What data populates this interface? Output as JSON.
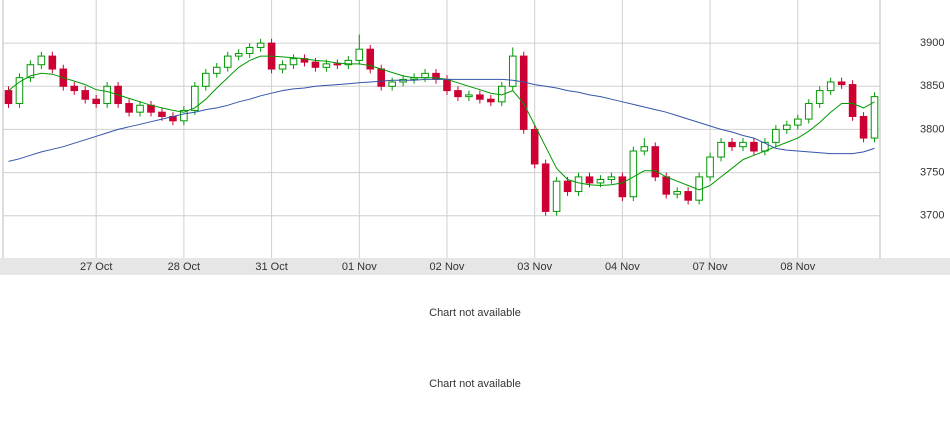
{
  "chart_data": {
    "type": "candlestick",
    "categories": [
      null,
      null,
      null,
      null,
      null,
      null,
      null,
      null,
      "27 Oct",
      null,
      null,
      null,
      null,
      null,
      null,
      null,
      "28 Oct",
      null,
      null,
      null,
      null,
      null,
      null,
      null,
      "31 Oct",
      null,
      null,
      null,
      null,
      null,
      null,
      null,
      "01 Nov",
      null,
      null,
      null,
      null,
      null,
      null,
      null,
      "02 Nov",
      null,
      null,
      null,
      null,
      null,
      null,
      null,
      "03 Nov",
      null,
      null,
      null,
      null,
      null,
      null,
      null,
      "04 Nov",
      null,
      null,
      null,
      null,
      null,
      null,
      null,
      "07 Nov",
      null,
      null,
      null,
      null,
      null,
      null,
      null,
      "08 Nov",
      null,
      null,
      null,
      null,
      null,
      null,
      null
    ],
    "open": [
      3845,
      3830,
      3860,
      3875,
      3885,
      3870,
      3850,
      3845,
      3835,
      3830,
      3850,
      3830,
      3820,
      3828,
      3820,
      3815,
      3810,
      3822,
      3850,
      3865,
      3872,
      3885,
      3888,
      3895,
      3900,
      3870,
      3875,
      3882,
      3878,
      3872,
      3876,
      3875,
      3880,
      3893,
      3870,
      3850,
      3855,
      3858,
      3860,
      3865,
      3858,
      3845,
      3838,
      3840,
      3835,
      3832,
      3850,
      3885,
      3800,
      3760,
      3705,
      3740,
      3728,
      3745,
      3738,
      3742,
      3745,
      3722,
      3775,
      3780,
      3745,
      3725,
      3728,
      3718,
      3745,
      3768,
      3785,
      3780,
      3785,
      3775,
      3785,
      3800,
      3805,
      3812,
      3830,
      3845,
      3855,
      3852,
      3815,
      3790
    ],
    "high": [
      3850,
      3865,
      3880,
      3890,
      3890,
      3875,
      3855,
      3850,
      3840,
      3855,
      3855,
      3835,
      3833,
      3833,
      3825,
      3820,
      3827,
      3855,
      3870,
      3877,
      3890,
      3893,
      3900,
      3905,
      3905,
      3880,
      3887,
      3887,
      3883,
      3881,
      3881,
      3885,
      3910,
      3898,
      3875,
      3860,
      3863,
      3865,
      3870,
      3870,
      3863,
      3850,
      3845,
      3845,
      3840,
      3855,
      3895,
      3890,
      3805,
      3765,
      3745,
      3745,
      3750,
      3750,
      3747,
      3750,
      3750,
      3780,
      3790,
      3785,
      3750,
      3733,
      3733,
      3750,
      3773,
      3790,
      3790,
      3790,
      3790,
      3790,
      3805,
      3810,
      3817,
      3835,
      3850,
      3860,
      3860,
      3857,
      3820,
      3843
    ],
    "low": [
      3825,
      3825,
      3855,
      3870,
      3865,
      3845,
      3840,
      3830,
      3825,
      3825,
      3825,
      3815,
      3815,
      3815,
      3810,
      3805,
      3805,
      3817,
      3845,
      3860,
      3867,
      3880,
      3883,
      3890,
      3865,
      3865,
      3870,
      3873,
      3867,
      3867,
      3870,
      3870,
      3875,
      3865,
      3845,
      3845,
      3850,
      3853,
      3855,
      3853,
      3840,
      3833,
      3833,
      3830,
      3827,
      3827,
      3845,
      3795,
      3755,
      3700,
      3700,
      3723,
      3723,
      3733,
      3733,
      3737,
      3717,
      3717,
      3770,
      3740,
      3720,
      3720,
      3713,
      3713,
      3740,
      3763,
      3775,
      3775,
      3770,
      3770,
      3780,
      3795,
      3800,
      3807,
      3825,
      3840,
      3847,
      3810,
      3785,
      3785
    ],
    "close": [
      3830,
      3860,
      3875,
      3885,
      3870,
      3850,
      3845,
      3835,
      3830,
      3850,
      3830,
      3820,
      3828,
      3820,
      3815,
      3810,
      3822,
      3850,
      3865,
      3872,
      3885,
      3888,
      3895,
      3900,
      3870,
      3875,
      3882,
      3878,
      3872,
      3876,
      3875,
      3880,
      3893,
      3870,
      3850,
      3855,
      3858,
      3860,
      3865,
      3858,
      3845,
      3838,
      3840,
      3835,
      3832,
      3850,
      3885,
      3800,
      3760,
      3705,
      3740,
      3728,
      3745,
      3738,
      3742,
      3745,
      3722,
      3775,
      3780,
      3745,
      3725,
      3728,
      3718,
      3745,
      3768,
      3785,
      3780,
      3785,
      3775,
      3785,
      3800,
      3805,
      3812,
      3830,
      3845,
      3855,
      3852,
      3815,
      3790,
      3838
    ],
    "up_color": "#009900",
    "down_color": "#cc0033",
    "lines": [
      {
        "color": "#009900",
        "values": [
          3845,
          3855,
          3862,
          3865,
          3864,
          3860,
          3856,
          3852,
          3846,
          3844,
          3840,
          3836,
          3832,
          3828,
          3825,
          3822,
          3820,
          3825,
          3835,
          3848,
          3860,
          3872,
          3880,
          3885,
          3885,
          3884,
          3883,
          3882,
          3880,
          3879,
          3877,
          3876,
          3876,
          3874,
          3870,
          3866,
          3862,
          3860,
          3860,
          3860,
          3858,
          3854,
          3850,
          3846,
          3842,
          3840,
          3845,
          3830,
          3805,
          3780,
          3755,
          3742,
          3738,
          3736,
          3735,
          3736,
          3738,
          3745,
          3752,
          3752,
          3745,
          3740,
          3735,
          3730,
          3735,
          3745,
          3755,
          3765,
          3770,
          3775,
          3780,
          3785,
          3790,
          3798,
          3808,
          3820,
          3830,
          3830,
          3825,
          3832
        ]
      },
      {
        "color": "#3355aa",
        "values": [
          3763,
          3766,
          3770,
          3774,
          3777,
          3780,
          3784,
          3788,
          3792,
          3796,
          3800,
          3803,
          3806,
          3809,
          3812,
          3815,
          3818,
          3820,
          3823,
          3825,
          3828,
          3832,
          3835,
          3839,
          3842,
          3845,
          3847,
          3848,
          3850,
          3851,
          3852,
          3853,
          3854,
          3855,
          3856,
          3857,
          3857,
          3857,
          3858,
          3858,
          3858,
          3858,
          3858,
          3858,
          3858,
          3858,
          3857,
          3855,
          3852,
          3850,
          3848,
          3845,
          3843,
          3840,
          3838,
          3835,
          3832,
          3829,
          3826,
          3823,
          3820,
          3816,
          3812,
          3808,
          3804,
          3800,
          3797,
          3793,
          3790,
          3784,
          3778,
          3776,
          3775,
          3774,
          3773,
          3772,
          3772,
          3772,
          3774,
          3778
        ]
      }
    ],
    "ylim": [
      3651,
      3950
    ],
    "yticks": [
      3700,
      3750,
      3800,
      3850,
      3900
    ],
    "grid": true
  },
  "notices": [
    "Chart not available",
    "Chart not available"
  ]
}
